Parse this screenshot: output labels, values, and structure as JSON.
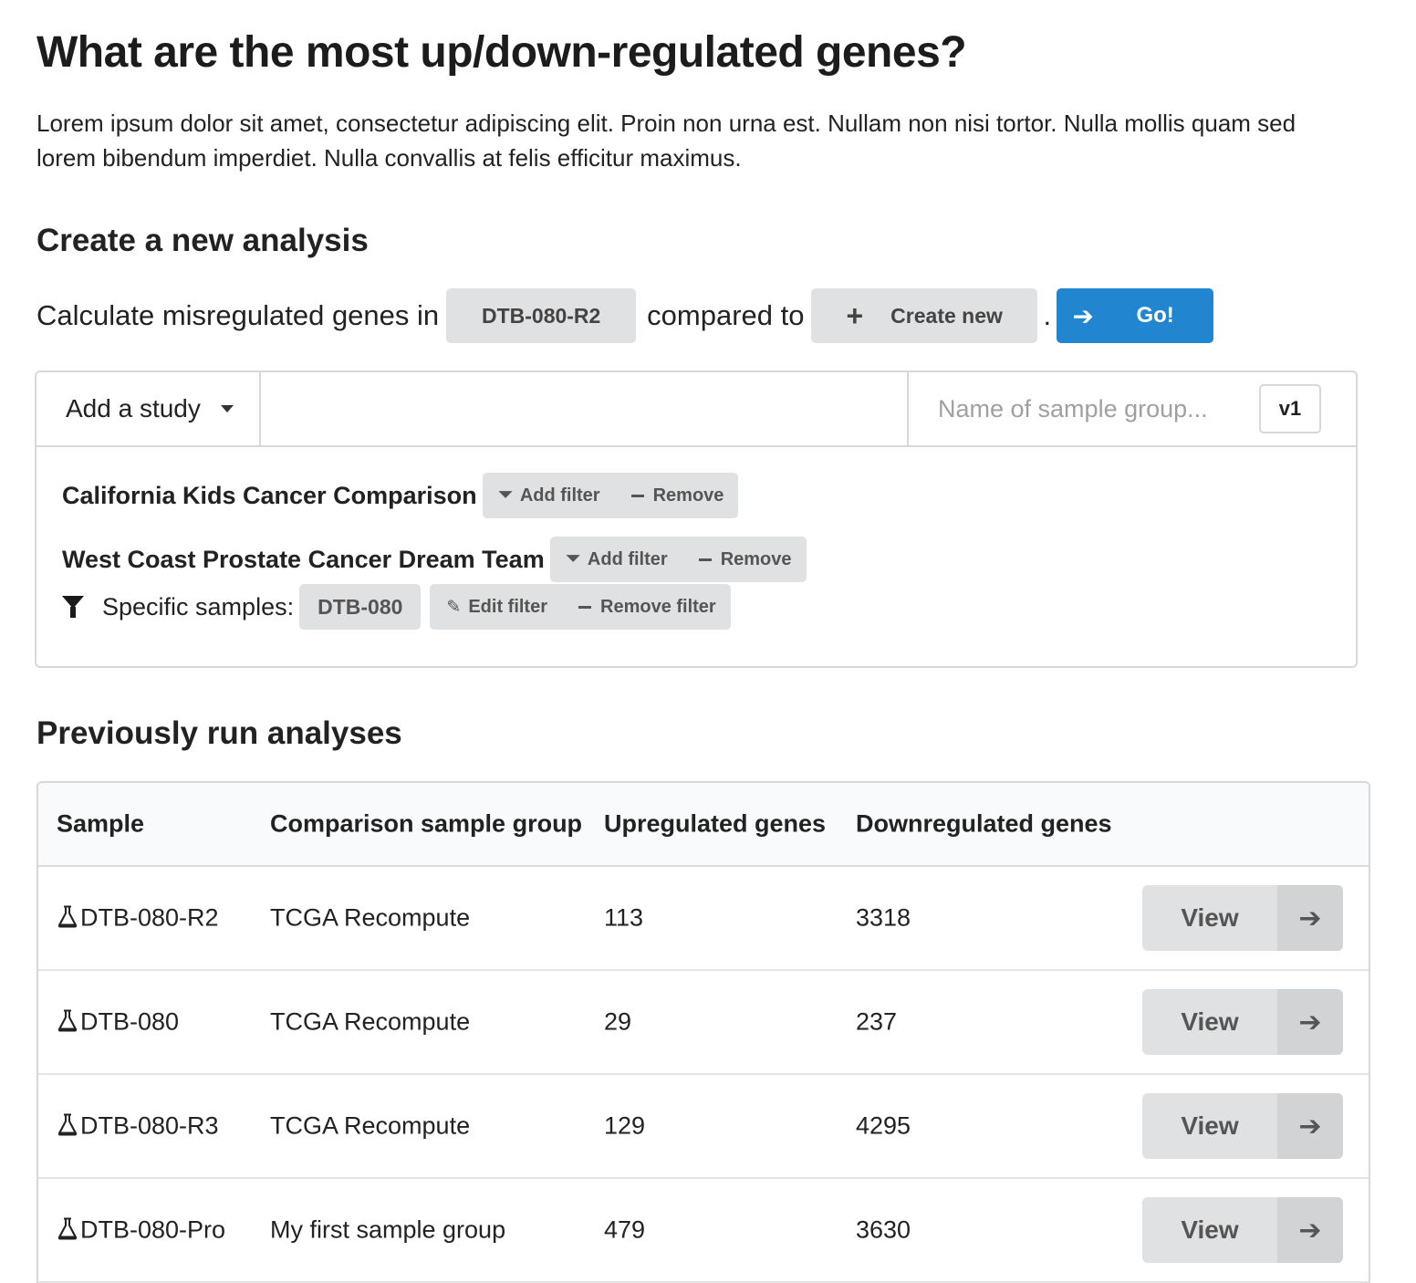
{
  "page": {
    "title": "What are the most up/down-regulated genes?",
    "intro": "Lorem ipsum dolor sit amet, consectetur adipiscing elit. Proin non urna est. Nullam non nisi tortor. Nulla mollis quam sed lorem bibendum imperdiet. Nulla convallis at felis efficitur maximus."
  },
  "create": {
    "heading": "Create a new analysis",
    "calc_prefix": "Calculate misregulated genes in",
    "sample_value": "DTB-080-R2",
    "compared_to": "compared to",
    "create_new_label": "Create new",
    "period": ".",
    "go_label": "Go!",
    "accent_color": "#2185d0"
  },
  "study_box": {
    "add_study_label": "Add a study",
    "group_name_placeholder": "Name of sample group...",
    "version": "v1",
    "studies": [
      {
        "name": "California Kids Cancer Comparison",
        "add_filter": "Add filter",
        "remove": "Remove"
      },
      {
        "name": "West Coast Prostate Cancer Dream Team",
        "add_filter": "Add filter",
        "remove": "Remove"
      }
    ],
    "filter": {
      "label": "Specific samples:",
      "value": "DTB-080",
      "edit_label": "Edit filter",
      "remove_label": "Remove filter"
    }
  },
  "previous": {
    "heading": "Previously run analyses",
    "columns": [
      "Sample",
      "Comparison sample group",
      "Upregulated genes",
      "Downregulated genes"
    ],
    "view_label": "View",
    "rows": [
      {
        "sample": "DTB-080-R2",
        "comparison": "TCGA Recompute",
        "up": "113",
        "down": "3318"
      },
      {
        "sample": "DTB-080",
        "comparison": "TCGA Recompute",
        "up": "29",
        "down": "237"
      },
      {
        "sample": "DTB-080-R3",
        "comparison": "TCGA Recompute",
        "up": "129",
        "down": "4295"
      },
      {
        "sample": "DTB-080-Pro",
        "comparison": "My first sample group",
        "up": "479",
        "down": "3630"
      }
    ]
  }
}
